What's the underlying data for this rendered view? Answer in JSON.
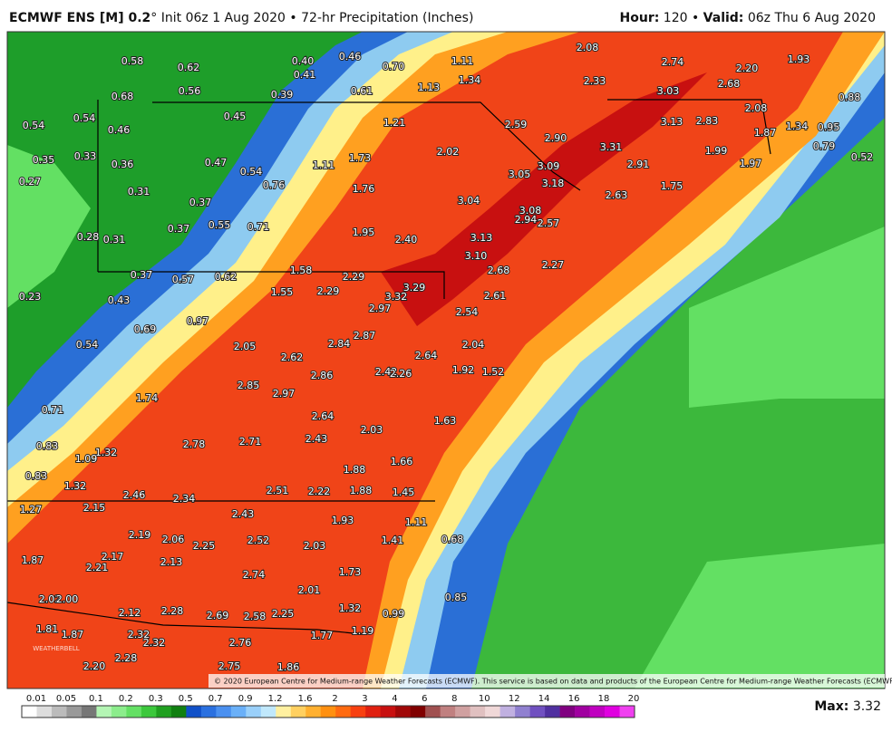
{
  "header": {
    "left_bold": "ECMWF ENS [M] 0.2",
    "left_rest": "° Init 06z 1 Aug 2020 • 72-hr Precipitation (Inches)",
    "hour_label": "Hour:",
    "hour_value": "120 •",
    "valid_label": "Valid:",
    "valid_value": "06z Thu 6 Aug 2020"
  },
  "map_labels": [
    "0.58",
    "0.62",
    "0.40",
    "0.46",
    "0.70",
    "1.11",
    "2.08",
    "2.74",
    "2.20",
    "1.93",
    "0.41",
    "0.56",
    "0.68",
    "0.39",
    "0.61",
    "1.13",
    "1.34",
    "2.33",
    "3.03",
    "2.68",
    "0.88",
    "0.54",
    "0.54",
    "0.45",
    "1.21",
    "2.59",
    "3.13",
    "2.83",
    "2.08",
    "1.34",
    "0.95",
    "0.46",
    "2.90",
    "3.31",
    "1.99",
    "1.87",
    "0.35",
    "0.33",
    "0.36",
    "0.47",
    "0.54",
    "1.11",
    "1.73",
    "2.02",
    "3.05",
    "3.09",
    "2.91",
    "1.97",
    "0.79",
    "0.52",
    "0.27",
    "0.31",
    "0.76",
    "1.76",
    "3.18",
    "1.75",
    "2.63",
    "0.37",
    "3.04",
    "3.08",
    "0.37",
    "0.55",
    "0.71",
    "1.95",
    "2.40",
    "2.94",
    "2.57",
    "0.28",
    "0.31",
    "3.13",
    "3.10",
    "2.27",
    "0.37",
    "0.57",
    "0.62",
    "1.58",
    "2.29",
    "2.68",
    "0.23",
    "0.43",
    "1.55",
    "2.29",
    "3.29",
    "3.32",
    "2.61",
    "0.97",
    "2.97",
    "2.54",
    "0.54",
    "0.69",
    "2.05",
    "2.84",
    "2.87",
    "2.04",
    "2.62",
    "2.64",
    "2.86",
    "2.42",
    "2.26",
    "1.92",
    "1.52",
    "1.74",
    "2.85",
    "2.97",
    "0.71",
    "2.64",
    "2.03",
    "1.63",
    "0.83",
    "1.32",
    "1.09",
    "2.78",
    "2.71",
    "2.43",
    "0.83",
    "1.88",
    "1.66",
    "1.32",
    "2.46",
    "2.34",
    "2.51",
    "2.22",
    "1.88",
    "1.45",
    "1.27",
    "2.15",
    "2.43",
    "1.93",
    "1.11",
    "2.19",
    "2.06",
    "2.25",
    "2.52",
    "2.03",
    "1.41",
    "0.68",
    "1.87",
    "2.17",
    "2.21",
    "2.13",
    "2.74",
    "1.73",
    "2.01",
    "0.85",
    "2.02",
    "2.00",
    "2.12",
    "2.28",
    "2.69",
    "2.58",
    "2.25",
    "1.32",
    "0.99",
    "1.81",
    "1.87",
    "2.32",
    "2.32",
    "2.76",
    "1.77",
    "1.19",
    "2.28",
    "2.20",
    "2.75",
    "1.86"
  ],
  "watermark": "WEATHERBELL",
  "copyright": "© 2020 European Centre for Medium-range Weather Forecasts (ECMWF). This service is based on data and products of the European Centre for Medium-range Weather Forecasts (ECMWF).",
  "colorbar_ticks": [
    "0.01",
    "0.05",
    "0.1",
    "0.2",
    "0.3",
    "0.5",
    "0.7",
    "0.9",
    "1.2",
    "1.6",
    "2",
    "3",
    "4",
    "6",
    "8",
    "10",
    "12",
    "14",
    "16",
    "18",
    "20"
  ],
  "max_label": "Max:",
  "max_value": "3.32"
}
